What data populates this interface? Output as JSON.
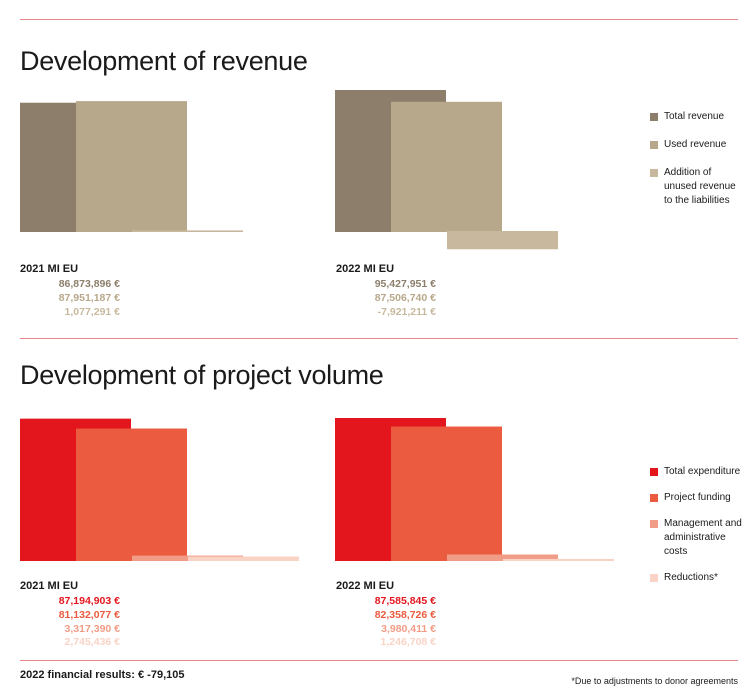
{
  "chart_data": [
    {
      "type": "bar",
      "title": "Development of revenue",
      "series": [
        {
          "name": "Total revenue",
          "color": "#8c7e6b"
        },
        {
          "name": "Used revenue",
          "color": "#b8a88b"
        },
        {
          "name": "Addition of unused revenue to the liabilities",
          "color": "#c8b99e"
        }
      ],
      "groups": [
        {
          "label": "2021 MI EU",
          "values": [
            86873896,
            87951187,
            1077291
          ],
          "value_labels": [
            "86,873,896 €",
            "87,951,187 €",
            "1,077,291 €"
          ]
        },
        {
          "label": "2022 MI EU",
          "values": [
            95427951,
            87506740,
            -7921211
          ],
          "value_labels": [
            "95,427,951 €",
            "87,506,740 €",
            "-7,921,211 €"
          ]
        }
      ],
      "legend_position": "right"
    },
    {
      "type": "bar",
      "title": "Development of project volume",
      "series": [
        {
          "name": "Total expenditure",
          "color": "#e3161d"
        },
        {
          "name": "Project funding",
          "color": "#eb5b3f"
        },
        {
          "name": "Management and administrative costs",
          "color": "#f19c86"
        },
        {
          "name": "Reductions*",
          "color": "#f9d3c6"
        }
      ],
      "groups": [
        {
          "label": "2021 MI EU",
          "values": [
            87194903,
            81132077,
            3317390,
            2745436
          ],
          "value_labels": [
            "87,194,903 €",
            "81,132,077 €",
            "3,317,390 €",
            "2,745,436 €"
          ]
        },
        {
          "label": "2022 MI EU",
          "values": [
            87585845,
            82358726,
            3980411,
            1246708
          ],
          "value_labels": [
            "87,585,845 €",
            "82,358,726 €",
            "3,980,411 €",
            "1,246,708 €"
          ]
        }
      ],
      "legend_position": "right"
    }
  ],
  "footer": {
    "financial_result": "2022 financial results: € -79,105",
    "footnote": "*Due to adjustments to donor agreements"
  }
}
